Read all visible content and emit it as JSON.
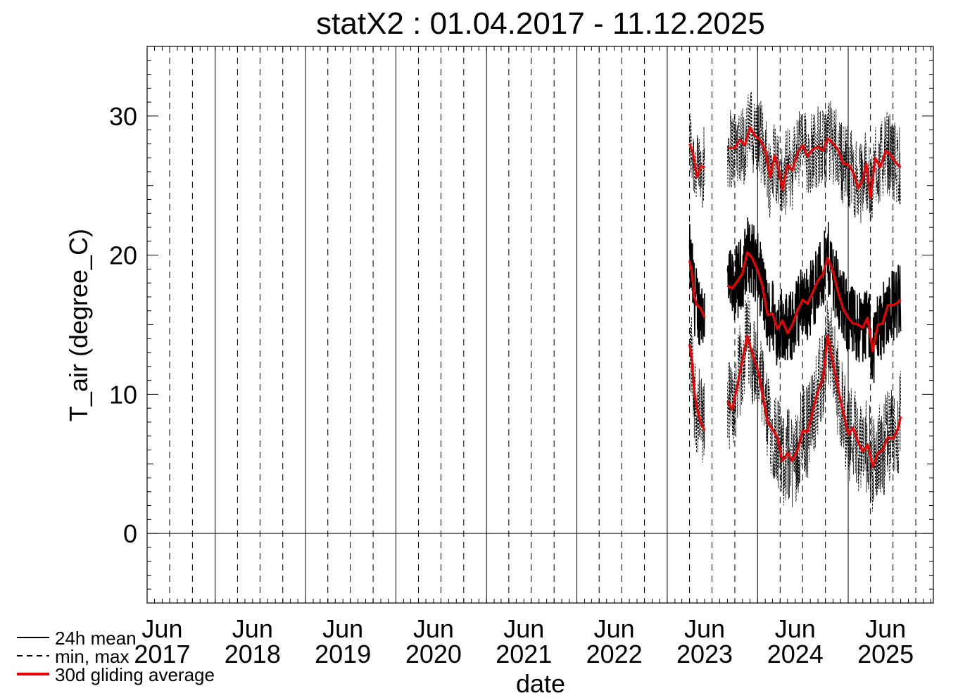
{
  "chart_data": {
    "type": "line",
    "title": "statX2 : 01.04.2017 - 11.12.2025",
    "xlabel": "date",
    "ylabel": "T_air (degree_C)",
    "xlim": [
      "2017-04-01",
      "2025-12-11"
    ],
    "ylim": [
      -5,
      35
    ],
    "y_ticks": [
      0,
      10,
      20,
      30
    ],
    "x_tick_labels": [
      {
        "date": "2017-06-01",
        "month": "Jun",
        "year": "2017"
      },
      {
        "date": "2018-06-01",
        "month": "Jun",
        "year": "2018"
      },
      {
        "date": "2019-06-01",
        "month": "Jun",
        "year": "2019"
      },
      {
        "date": "2020-06-01",
        "month": "Jun",
        "year": "2020"
      },
      {
        "date": "2021-06-01",
        "month": "Jun",
        "year": "2021"
      },
      {
        "date": "2022-06-01",
        "month": "Jun",
        "year": "2022"
      },
      {
        "date": "2023-06-01",
        "month": "Jun",
        "year": "2023"
      },
      {
        "date": "2024-06-01",
        "month": "Jun",
        "year": "2024"
      },
      {
        "date": "2025-06-01",
        "month": "Jun",
        "year": "2025"
      }
    ],
    "year_gridlines": [
      "2018-01-01",
      "2019-01-01",
      "2020-01-01",
      "2021-01-01",
      "2022-01-01",
      "2023-01-01",
      "2024-01-01",
      "2025-01-01"
    ],
    "quarter_gridlines": [
      "2017-04-01",
      "2017-07-01",
      "2017-10-01",
      "2018-04-01",
      "2018-07-01",
      "2018-10-01",
      "2019-04-01",
      "2019-07-01",
      "2019-10-01",
      "2020-04-01",
      "2020-07-01",
      "2020-10-01",
      "2021-04-01",
      "2021-07-01",
      "2021-10-01",
      "2022-04-01",
      "2022-07-01",
      "2022-10-01",
      "2023-04-01",
      "2023-07-01",
      "2023-10-01",
      "2024-04-01",
      "2024-07-01",
      "2024-10-01",
      "2025-04-01",
      "2025-07-01",
      "2025-10-01"
    ],
    "zero_line": 0,
    "colors": {
      "mean": "#000000",
      "minmax": "#000000",
      "gliding": "#ee0000"
    },
    "legend": {
      "placement": "bottom-left",
      "entries": [
        {
          "label": "24h mean",
          "style": "solid-black"
        },
        {
          "label": "min, max",
          "style": "dashed-black"
        },
        {
          "label": "30d gliding average",
          "style": "solid-red"
        }
      ]
    },
    "series": [
      {
        "name": "30d gliding average",
        "role": "max_avg",
        "segments": [
          [
            [
              "2023-04-01",
              28.0
            ],
            [
              "2023-04-15",
              27.3
            ],
            [
              "2023-05-01",
              25.6
            ],
            [
              "2023-05-15",
              26.4
            ],
            [
              "2023-06-01",
              26.3
            ]
          ],
          [
            [
              "2023-09-01",
              27.7
            ],
            [
              "2023-10-01",
              27.7
            ],
            [
              "2023-10-20",
              28.3
            ],
            [
              "2023-11-10",
              27.9
            ],
            [
              "2023-12-01",
              29.2
            ],
            [
              "2023-12-20",
              28.6
            ],
            [
              "2024-01-10",
              28.3
            ],
            [
              "2024-02-01",
              27.5
            ],
            [
              "2024-02-20",
              25.6
            ],
            [
              "2024-03-10",
              27.2
            ],
            [
              "2024-03-25",
              26.2
            ],
            [
              "2024-04-10",
              24.7
            ],
            [
              "2024-05-01",
              26.5
            ],
            [
              "2024-05-20",
              26.1
            ],
            [
              "2024-06-10",
              27.4
            ],
            [
              "2024-07-01",
              27.9
            ],
            [
              "2024-07-20",
              27.1
            ],
            [
              "2024-08-10",
              27.6
            ],
            [
              "2024-09-01",
              27.8
            ],
            [
              "2024-09-20",
              27.5
            ],
            [
              "2024-10-10",
              28.4
            ],
            [
              "2024-11-01",
              28.0
            ],
            [
              "2024-11-20",
              27.6
            ],
            [
              "2024-12-10",
              26.6
            ],
            [
              "2025-01-01",
              26.5
            ],
            [
              "2025-01-20",
              26.0
            ],
            [
              "2025-02-10",
              24.8
            ],
            [
              "2025-03-01",
              25.5
            ],
            [
              "2025-03-15",
              26.6
            ],
            [
              "2025-04-01",
              24.1
            ],
            [
              "2025-04-20",
              27.0
            ],
            [
              "2025-05-10",
              26.3
            ],
            [
              "2025-06-01",
              27.5
            ],
            [
              "2025-06-20",
              27.2
            ],
            [
              "2025-07-10",
              26.7
            ],
            [
              "2025-08-01",
              26.3
            ]
          ]
        ]
      },
      {
        "name": "30d gliding average",
        "role": "mean_avg",
        "segments": [
          [
            [
              "2023-04-01",
              19.6
            ],
            [
              "2023-04-10",
              18.8
            ],
            [
              "2023-04-20",
              17.0
            ],
            [
              "2023-05-01",
              16.4
            ],
            [
              "2023-05-15",
              16.2
            ],
            [
              "2023-06-01",
              15.5
            ]
          ],
          [
            [
              "2023-09-01",
              17.8
            ],
            [
              "2023-09-20",
              17.6
            ],
            [
              "2023-10-10",
              18.1
            ],
            [
              "2023-11-01",
              18.7
            ],
            [
              "2023-11-20",
              20.2
            ],
            [
              "2023-12-10",
              19.8
            ],
            [
              "2024-01-01",
              18.9
            ],
            [
              "2024-01-20",
              17.8
            ],
            [
              "2024-02-10",
              15.7
            ],
            [
              "2024-03-01",
              15.8
            ],
            [
              "2024-03-20",
              14.7
            ],
            [
              "2024-04-10",
              15.3
            ],
            [
              "2024-05-01",
              14.4
            ],
            [
              "2024-05-20",
              15.0
            ],
            [
              "2024-06-10",
              16.0
            ],
            [
              "2024-07-01",
              16.8
            ],
            [
              "2024-07-20",
              16.5
            ],
            [
              "2024-08-10",
              17.3
            ],
            [
              "2024-09-01",
              18.2
            ],
            [
              "2024-09-20",
              18.6
            ],
            [
              "2024-10-10",
              19.8
            ],
            [
              "2024-11-01",
              18.8
            ],
            [
              "2024-11-20",
              17.4
            ],
            [
              "2024-12-10",
              16.2
            ],
            [
              "2025-01-01",
              15.5
            ],
            [
              "2025-01-20",
              15.1
            ],
            [
              "2025-02-10",
              15.0
            ],
            [
              "2025-03-01",
              14.8
            ],
            [
              "2025-03-20",
              15.5
            ],
            [
              "2025-04-10",
              13.1
            ],
            [
              "2025-05-01",
              15.0
            ],
            [
              "2025-05-20",
              15.1
            ],
            [
              "2025-06-10",
              16.4
            ],
            [
              "2025-07-01",
              16.4
            ],
            [
              "2025-07-20",
              16.6
            ],
            [
              "2025-08-01",
              16.8
            ]
          ]
        ]
      },
      {
        "name": "30d gliding average",
        "role": "min_avg",
        "segments": [
          [
            [
              "2023-04-01",
              13.6
            ],
            [
              "2023-04-10",
              12.5
            ],
            [
              "2023-04-20",
              10.2
            ],
            [
              "2023-05-01",
              9.0
            ],
            [
              "2023-05-15",
              8.0
            ],
            [
              "2023-06-01",
              7.4
            ]
          ],
          [
            [
              "2023-09-01",
              9.5
            ],
            [
              "2023-09-20",
              8.9
            ],
            [
              "2023-10-10",
              10.5
            ],
            [
              "2023-11-01",
              12.5
            ],
            [
              "2023-11-20",
              14.2
            ],
            [
              "2023-12-10",
              12.9
            ],
            [
              "2024-01-01",
              11.8
            ],
            [
              "2024-01-20",
              10.0
            ],
            [
              "2024-02-10",
              8.0
            ],
            [
              "2024-03-01",
              7.5
            ],
            [
              "2024-03-20",
              6.9
            ],
            [
              "2024-04-10",
              5.2
            ],
            [
              "2024-05-01",
              5.8
            ],
            [
              "2024-05-20",
              5.2
            ],
            [
              "2024-06-10",
              6.0
            ],
            [
              "2024-07-01",
              7.4
            ],
            [
              "2024-07-20",
              7.3
            ],
            [
              "2024-08-10",
              8.8
            ],
            [
              "2024-09-01",
              10.3
            ],
            [
              "2024-09-20",
              11.1
            ],
            [
              "2024-10-10",
              14.2
            ],
            [
              "2024-11-01",
              12.1
            ],
            [
              "2024-11-20",
              10.5
            ],
            [
              "2024-12-10",
              8.8
            ],
            [
              "2025-01-01",
              7.1
            ],
            [
              "2025-01-20",
              7.6
            ],
            [
              "2025-02-10",
              6.5
            ],
            [
              "2025-03-01",
              5.9
            ],
            [
              "2025-03-20",
              6.4
            ],
            [
              "2025-04-10",
              4.8
            ],
            [
              "2025-05-01",
              5.8
            ],
            [
              "2025-05-20",
              6.0
            ],
            [
              "2025-06-10",
              6.9
            ],
            [
              "2025-07-01",
              6.8
            ],
            [
              "2025-07-20",
              7.5
            ],
            [
              "2025-08-01",
              8.4
            ]
          ]
        ]
      }
    ]
  }
}
